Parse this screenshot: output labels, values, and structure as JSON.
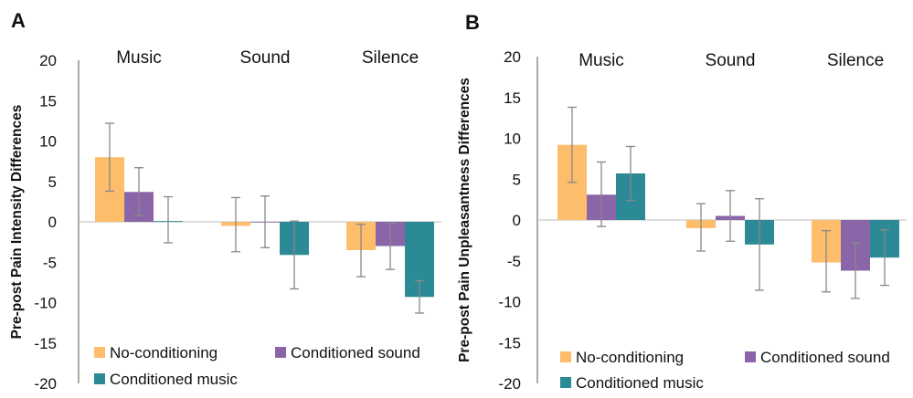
{
  "chart_data": [
    {
      "type": "bar",
      "panel_label": "A",
      "ylabel": "Pre-post Pain Intensity Differences",
      "ylim": [
        -20,
        20
      ],
      "yticks": [
        20,
        15,
        10,
        5,
        0,
        -5,
        -10,
        -15,
        -20
      ],
      "categories": [
        "Music",
        "Sound",
        "Silence"
      ],
      "series": [
        {
          "name": "No-conditioning",
          "color": "#FDBD6B",
          "values": [
            8.0,
            -0.5,
            -3.5
          ],
          "err_low": [
            3.8,
            -3.7,
            -6.8
          ],
          "err_high": [
            12.2,
            3.0,
            -0.3
          ]
        },
        {
          "name": "Conditioned sound",
          "color": "#8A66A8",
          "values": [
            3.7,
            0.0,
            -3.0
          ],
          "err_low": [
            0.8,
            -3.2,
            -5.9
          ],
          "err_high": [
            6.7,
            3.2,
            -0.2
          ]
        },
        {
          "name": "Conditioned music",
          "color": "#2B8A96",
          "values": [
            0.1,
            -4.1,
            -9.3
          ],
          "err_low": [
            -2.6,
            -8.3,
            -11.3
          ],
          "err_high": [
            3.1,
            0.1,
            -7.3
          ]
        }
      ],
      "legend": {
        "placement": "bottom"
      },
      "grid": false
    },
    {
      "type": "bar",
      "panel_label": "B",
      "ylabel": "Pre-post Pain Unpleasantness Differences",
      "ylim": [
        -20,
        20
      ],
      "yticks": [
        20,
        15,
        10,
        5,
        0,
        -5,
        -10,
        -15,
        -20
      ],
      "categories": [
        "Music",
        "Sound",
        "Silence"
      ],
      "series": [
        {
          "name": "No-conditioning",
          "color": "#FDBD6B",
          "values": [
            9.2,
            -1.0,
            -5.2
          ],
          "err_low": [
            4.6,
            -3.8,
            -8.8
          ],
          "err_high": [
            13.8,
            2.0,
            -1.3
          ]
        },
        {
          "name": "Conditioned sound",
          "color": "#8A66A8",
          "values": [
            3.1,
            0.5,
            -6.2
          ],
          "err_low": [
            -0.8,
            -2.6,
            -9.6
          ],
          "err_high": [
            7.1,
            3.6,
            -2.8
          ]
        },
        {
          "name": "Conditioned music",
          "color": "#2B8A96",
          "values": [
            5.7,
            -3.0,
            -4.6
          ],
          "err_low": [
            2.4,
            -8.6,
            -8.0
          ],
          "err_high": [
            9.0,
            2.6,
            -1.2
          ]
        }
      ],
      "legend": {
        "placement": "bottom"
      },
      "grid": false
    }
  ]
}
